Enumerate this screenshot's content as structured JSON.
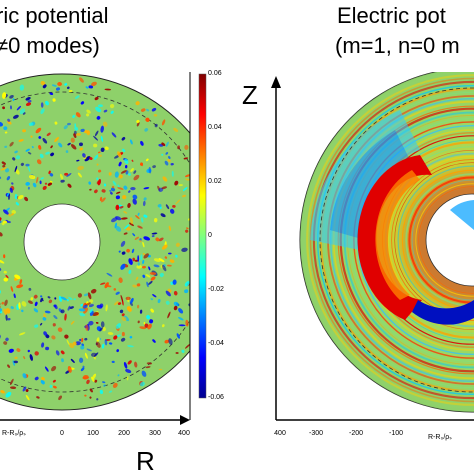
{
  "left_panel": {
    "title_line1": "ric potential",
    "title_line2": "≠0 modes)",
    "axis_label": "R-R₀/ρₛ",
    "x_ticks": [
      "0",
      "100",
      "200",
      "300",
      "400"
    ],
    "colorbar_ticks": [
      "0.06",
      "0.04",
      "0.02",
      "0",
      "-0.02",
      "-0.04",
      "-0.06"
    ]
  },
  "right_panel": {
    "title_line1": "Electric pot",
    "title_line2": "(m=1, n=0 m",
    "axis_label": "R-R₀/ρₛ",
    "x_ticks": [
      "400",
      "-300",
      "-200",
      "-100"
    ]
  },
  "axes": {
    "z_letter": "Z",
    "r_letter": "R"
  },
  "colors": {
    "background_field": "#8ed16a",
    "jet_low": "#00008f",
    "jet_high": "#800000"
  }
}
